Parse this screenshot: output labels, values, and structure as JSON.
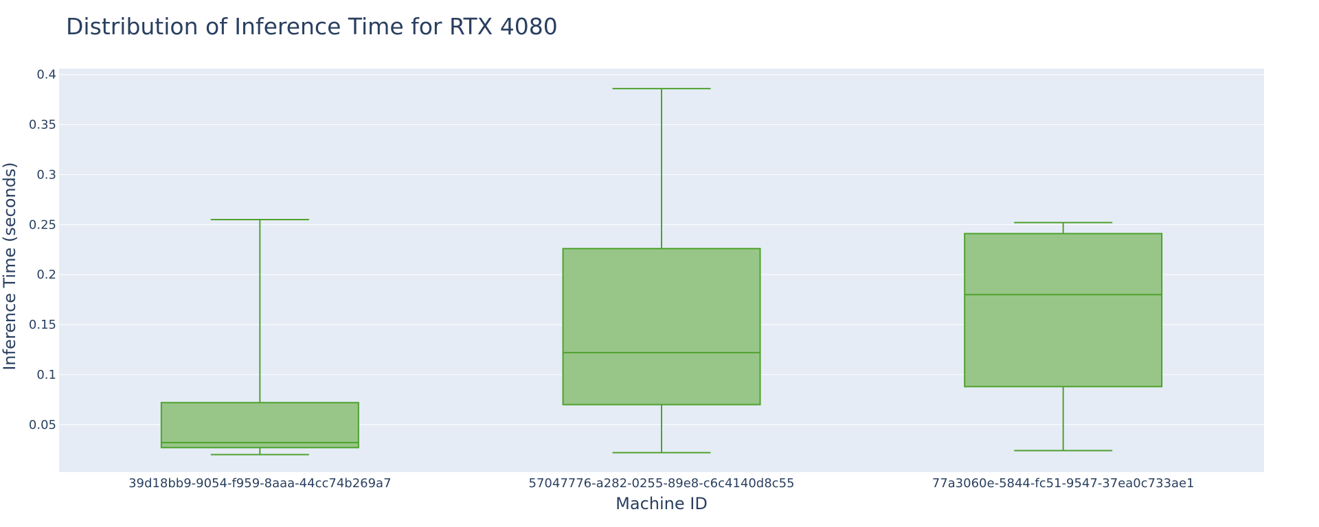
{
  "chart_data": {
    "type": "box",
    "title": "Distribution of Inference Time for RTX 4080",
    "xlabel": "Machine ID",
    "ylabel": "Inference Time (seconds)",
    "ylim": [
      0.0025,
      0.406
    ],
    "yticks": [
      0.05,
      0.1,
      0.15,
      0.2,
      0.25,
      0.3,
      0.35,
      0.4
    ],
    "ytick_labels": [
      "0.05",
      "0.1",
      "0.15",
      "0.2",
      "0.25",
      "0.3",
      "0.35",
      "0.4"
    ],
    "grid": true,
    "legend": "none",
    "colors": {
      "plot_bg": "#e5ecf6",
      "grid": "#ffffff",
      "box_fill": "#98c689",
      "box_line": "#4fa12c",
      "text": "#2a3f5f"
    },
    "categories": [
      "39d18bb9-9054-f959-8aaa-44cc74b269a7",
      "57047776-a282-0255-89e8-c6c4140d8c55",
      "77a3060e-5844-fc51-9547-37ea0c733ae1"
    ],
    "boxes": [
      {
        "category": "39d18bb9-9054-f959-8aaa-44cc74b269a7",
        "min": 0.02,
        "q1": 0.027,
        "median": 0.032,
        "q3": 0.072,
        "max": 0.255
      },
      {
        "category": "57047776-a282-0255-89e8-c6c4140d8c55",
        "min": 0.022,
        "q1": 0.07,
        "median": 0.122,
        "q3": 0.226,
        "max": 0.386
      },
      {
        "category": "77a3060e-5844-fc51-9547-37ea0c733ae1",
        "min": 0.024,
        "q1": 0.088,
        "median": 0.18,
        "q3": 0.241,
        "max": 0.252
      }
    ]
  }
}
